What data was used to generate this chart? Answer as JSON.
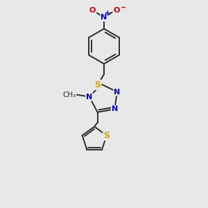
{
  "bg_color": "#e8e8e8",
  "bond_color": "#2a2a2a",
  "bond_width": 1.4,
  "atom_colors": {
    "N": "#0000cc",
    "S": "#ccaa00",
    "O": "#cc0000",
    "C": "#2a2a2a"
  },
  "scale": 1.0
}
